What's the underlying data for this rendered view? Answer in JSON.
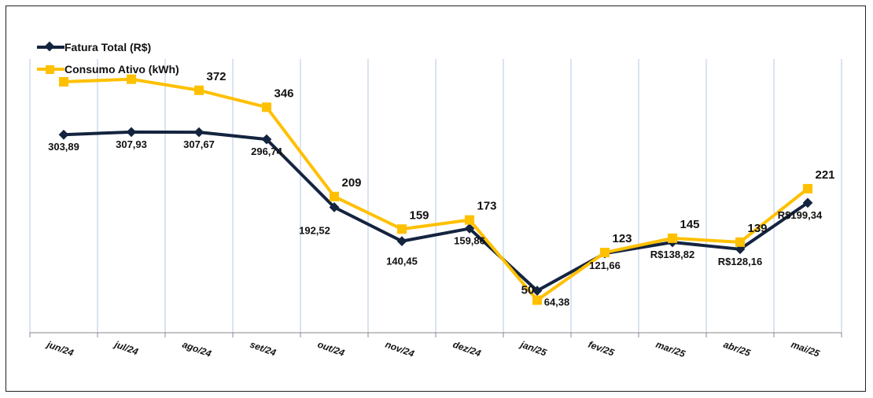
{
  "chart_data": {
    "type": "line",
    "title": "",
    "xlabel": "",
    "ylabel": "",
    "ylim": [
      0,
      420
    ],
    "grid": "vertical",
    "legend_position": "top-left",
    "categories": [
      "jun/24",
      "jul/24",
      "ago/24",
      "set/24",
      "out/24",
      "nov/24",
      "dez/24",
      "jan/25",
      "fev/25",
      "mar/25",
      "abr/25",
      "mai/25"
    ],
    "series": [
      {
        "name": "Fatura Total (R$)",
        "color": "#14243f",
        "marker": "diamond",
        "values": [
          303.89,
          307.93,
          307.67,
          296.74,
          192.52,
          140.45,
          159.86,
          64.38,
          121.66,
          138.82,
          128.16,
          199.34
        ],
        "labels": [
          "303,89",
          "307,93",
          "307,67",
          "296,74",
          "192,52",
          "140,45",
          "159,86",
          "64,38",
          "121,66",
          "R$138,82",
          "R$128,16",
          "R$199,34"
        ]
      },
      {
        "name": "Consumo Ativo (kWh)",
        "color": "#ffc000",
        "marker": "square",
        "values": [
          385,
          389,
          372,
          346,
          209,
          159,
          173,
          50,
          123,
          145,
          139,
          221
        ],
        "labels": [
          "",
          "",
          "372",
          "346",
          "209",
          "159",
          "173",
          "50",
          "123",
          "145",
          "139",
          "221"
        ]
      }
    ]
  }
}
